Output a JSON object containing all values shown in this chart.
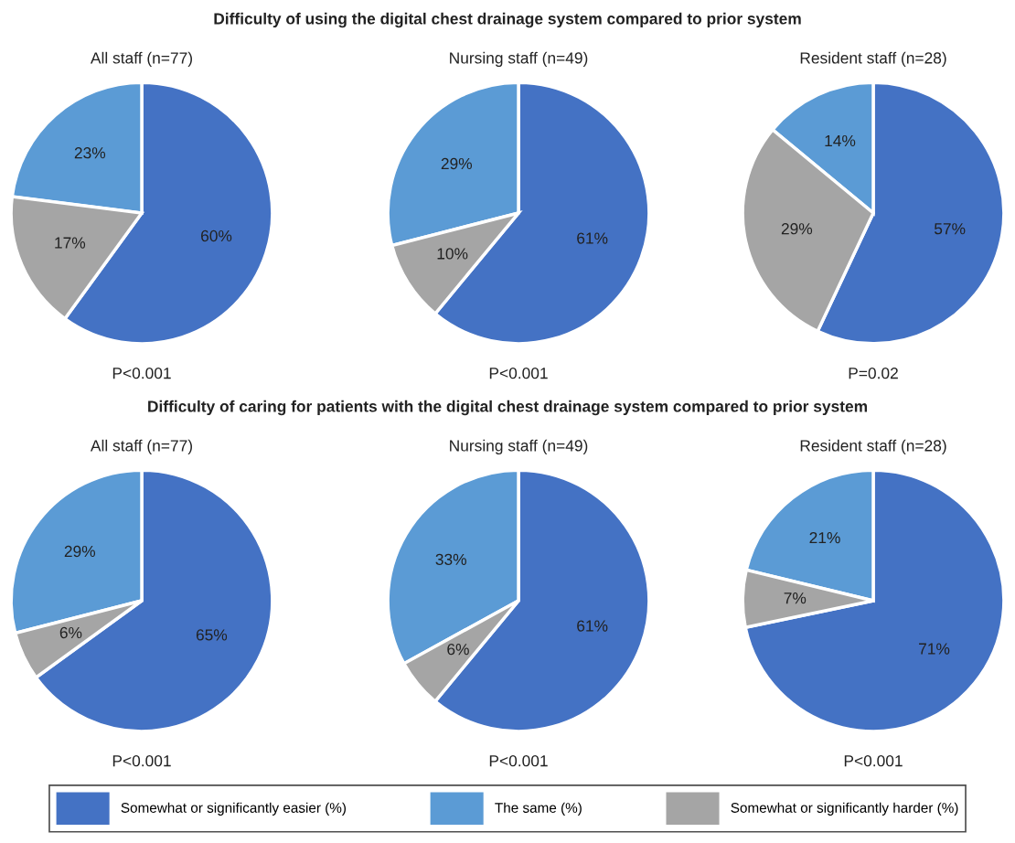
{
  "chart_data": [
    {
      "type": "pie",
      "subtitle": "Difficulty of using the digital chest drainage system compared to prior system",
      "title": "All staff (n=77)",
      "categories": [
        "Somewhat or significantly easier (%)",
        "The same (%)",
        "Somewhat or significantly harder (%)"
      ],
      "values": [
        60,
        23,
        17
      ],
      "value_labels": [
        "60%",
        "23%",
        "17%"
      ],
      "colors": [
        "#4472c4",
        "#5b9bd5",
        "#a5a5a5"
      ],
      "annotations": [
        "P<0.001"
      ],
      "legend": "bottom"
    },
    {
      "type": "pie",
      "title": "Nursing staff (n=49)",
      "categories": [
        null,
        null,
        null
      ],
      "values": [
        61,
        29,
        10
      ],
      "value_labels": [
        "61%",
        "29%",
        "10%"
      ],
      "colors": [
        "#4472c4",
        "#5b9bd5",
        "#a5a5a5"
      ],
      "annotations": [
        "P<0.001"
      ]
    },
    {
      "type": "pie",
      "title": "Resident staff (n=28)",
      "categories": [
        null,
        null,
        null
      ],
      "values": [
        57,
        14,
        29
      ],
      "value_labels": [
        "57%",
        "14%",
        "29%"
      ],
      "colors": [
        "#4472c4",
        "#5b9bd5",
        "#a5a5a5"
      ],
      "annotations": [
        "P=0.02"
      ]
    },
    {
      "type": "pie",
      "subtitle": "Difficulty of caring for patients with the digital chest drainage system compared to prior system",
      "title": "All staff (n=77)",
      "categories": [
        null,
        null,
        null
      ],
      "values": [
        65,
        29,
        6
      ],
      "value_labels": [
        "65%",
        "29%",
        "6%"
      ],
      "colors": [
        "#4472c4",
        "#5b9bd5",
        "#a5a5a5"
      ],
      "annotations": [
        "P<0.001"
      ]
    },
    {
      "type": "pie",
      "title": "Nursing staff (n=49)",
      "categories": [
        null,
        null,
        null
      ],
      "values": [
        61,
        33,
        6
      ],
      "value_labels": [
        "61%",
        "33%",
        "6%"
      ],
      "colors": [
        "#4472c4",
        "#5b9bd5",
        "#a5a5a5"
      ],
      "annotations": [
        "P<0.001"
      ]
    },
    {
      "type": "pie",
      "title": "Resident staff (n=28)",
      "categories": [
        null,
        null,
        null
      ],
      "values": [
        71,
        21,
        7
      ],
      "value_labels": [
        "71%",
        "21%",
        "7%"
      ],
      "colors": [
        "#4472c4",
        "#5b9bd5",
        "#a5a5a5"
      ],
      "annotations": [
        "P<0.001"
      ]
    }
  ]
}
